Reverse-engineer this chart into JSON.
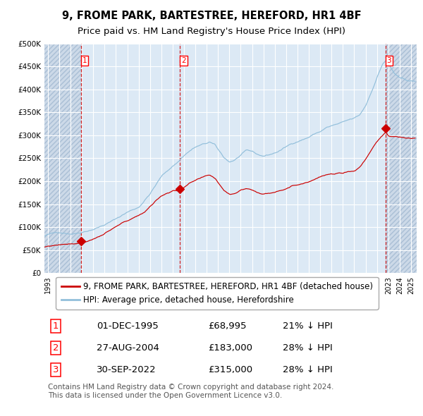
{
  "title": "9, FROME PARK, BARTESTREE, HEREFORD, HR1 4BF",
  "subtitle": "Price paid vs. HM Land Registry's House Price Index (HPI)",
  "ylim": [
    0,
    500000
  ],
  "yticks": [
    0,
    50000,
    100000,
    150000,
    200000,
    250000,
    300000,
    350000,
    400000,
    450000,
    500000
  ],
  "ytick_labels": [
    "£0",
    "£50K",
    "£100K",
    "£150K",
    "£200K",
    "£250K",
    "£300K",
    "£350K",
    "£400K",
    "£450K",
    "£500K"
  ],
  "xlim_start": 1992.7,
  "xlim_end": 2025.5,
  "xticks": [
    1993,
    1994,
    1995,
    1996,
    1997,
    1998,
    1999,
    2000,
    2001,
    2002,
    2003,
    2004,
    2005,
    2006,
    2007,
    2008,
    2009,
    2010,
    2011,
    2012,
    2013,
    2014,
    2015,
    2016,
    2017,
    2018,
    2019,
    2020,
    2021,
    2022,
    2023,
    2024,
    2025
  ],
  "hpi_color": "#92bfdb",
  "price_color": "#cc0000",
  "dashed_line_color": "#cc0000",
  "background_color": "#dce9f5",
  "grid_color": "#ffffff",
  "legend_entries": [
    "9, FROME PARK, BARTESTREE, HEREFORD, HR1 4BF (detached house)",
    "HPI: Average price, detached house, Herefordshire"
  ],
  "sale_dates": [
    1995.917,
    2004.654,
    2022.748
  ],
  "sale_prices": [
    68995,
    183000,
    315000
  ],
  "sale_labels": [
    "1",
    "2",
    "3"
  ],
  "table_rows": [
    [
      "1",
      "01-DEC-1995",
      "£68,995",
      "21% ↓ HPI"
    ],
    [
      "2",
      "27-AUG-2004",
      "£183,000",
      "28% ↓ HPI"
    ],
    [
      "3",
      "30-SEP-2022",
      "£315,000",
      "28% ↓ HPI"
    ]
  ],
  "footer": "Contains HM Land Registry data © Crown copyright and database right 2024.\nThis data is licensed under the Open Government Licence v3.0.",
  "title_fontsize": 10.5,
  "subtitle_fontsize": 9.5,
  "tick_fontsize": 7.5,
  "legend_fontsize": 8.5,
  "table_fontsize": 9.5,
  "footer_fontsize": 7.5
}
